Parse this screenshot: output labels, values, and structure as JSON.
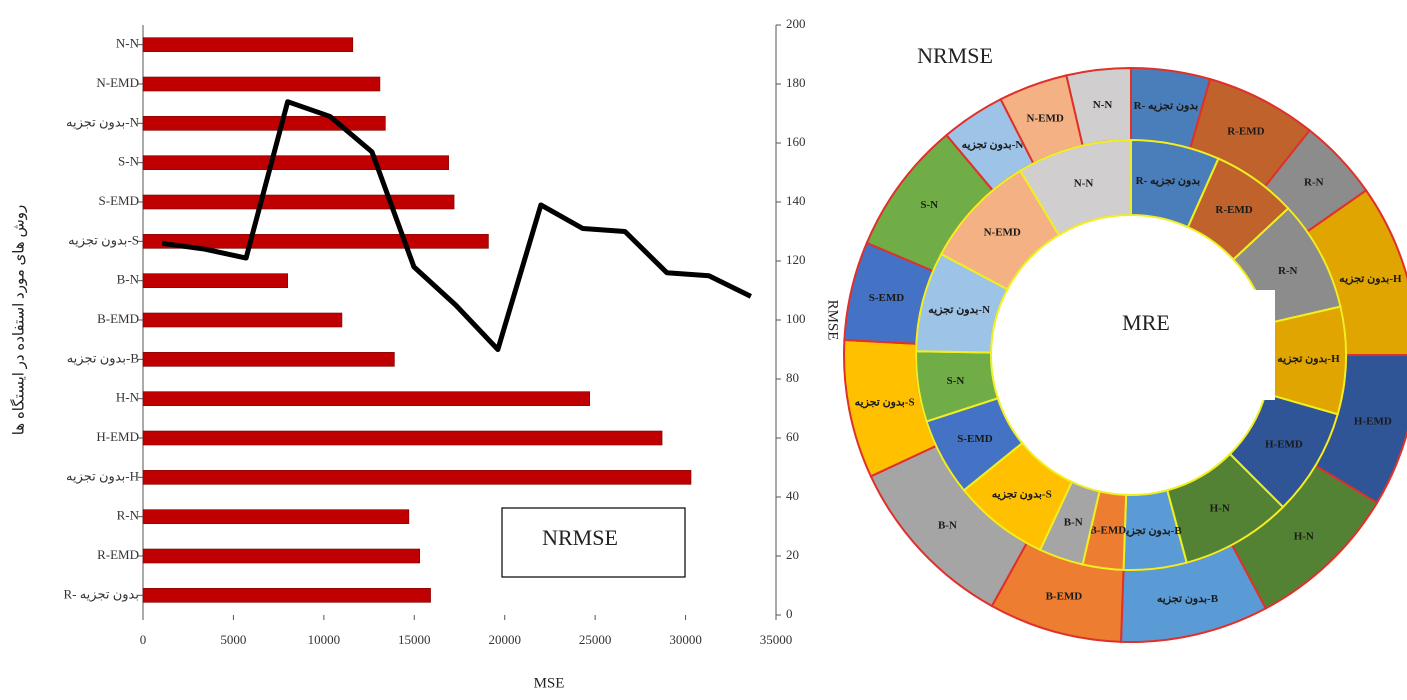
{
  "chart_data": [
    {
      "type": "bar",
      "orientation": "horizontal",
      "categories": [
        "N-N",
        "N-EMD",
        "بدون تجزیه-N",
        "S-N",
        "S-EMD",
        "بدون تجزیه-S",
        "B-N",
        "B-EMD",
        "بدون تجزیه-B",
        "H-N",
        "H-EMD",
        "بدون تجزیه-H",
        "R-N",
        "R-EMD",
        "R- بدون تجزیه"
      ],
      "values": [
        11600,
        13100,
        13400,
        16900,
        17200,
        19100,
        8000,
        11000,
        13900,
        24700,
        28700,
        30300,
        14700,
        15300,
        15900
      ],
      "color": "#c00000",
      "line": {
        "color": "#000000",
        "axis": "y2",
        "x": [
          1050,
          3430,
          5700,
          8000,
          10340,
          12660,
          14980,
          17300,
          19620,
          22000,
          24320,
          26650,
          28970,
          31290,
          33610
        ],
        "values": [
          126,
          124,
          121,
          174,
          169,
          157,
          118,
          105,
          90,
          139,
          131,
          130,
          116,
          115,
          108
        ]
      },
      "xlim": [
        0,
        35000
      ],
      "xticks": [
        0,
        5000,
        10000,
        15000,
        20000,
        25000,
        30000,
        35000
      ],
      "y2lim": [
        0,
        200
      ],
      "y2ticks": [
        0,
        20,
        40,
        60,
        80,
        100,
        120,
        140,
        160,
        180,
        200
      ],
      "x_label": "MSE",
      "y_label": "روش های مورد استفاده در ایستگاه ها",
      "y2_label": "RMSE",
      "annotation": "NRMSE"
    },
    {
      "type": "donut",
      "categories": [
        "R- بدون تجزیه",
        "R-EMD",
        "R-N",
        "بدون تجزیه-H",
        "H-EMD",
        "H-N",
        "بدون تجزیه-B",
        "B-EMD",
        "B-N",
        "بدون تجزیه-S",
        "S-EMD",
        "S-N",
        "بدون تجزیه-N",
        "N-EMD",
        "N-N"
      ],
      "colors": [
        "#4a7ebb",
        "#c0622b",
        "#8c8c8c",
        "#e0a500",
        "#2f5597",
        "#548235",
        "#5b9bd5",
        "#ed7d31",
        "#a5a5a5",
        "#ffc000",
        "#4472c4",
        "#70ad47",
        "#9dc3e6",
        "#f4b183",
        "#d0cece"
      ],
      "series": [
        {
          "name": "NRMSE",
          "values": [
            16,
            22.5,
            16.5,
            35,
            31,
            31,
            30,
            27,
            36,
            28,
            20,
            27,
            13,
            14,
            13
          ]
        },
        {
          "name": "MRE",
          "values": [
            24,
            23,
            30,
            29,
            29,
            30,
            17,
            11,
            12,
            26,
            21,
            19,
            27,
            31,
            31
          ]
        }
      ]
    }
  ]
}
